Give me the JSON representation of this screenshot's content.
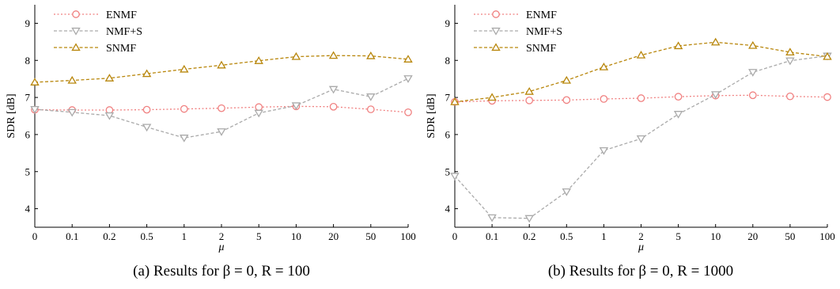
{
  "chart_data": [
    {
      "type": "line",
      "caption": "(a) Results for β = 0, R = 100",
      "xlabel": "μ",
      "ylabel": "SDR [dB]",
      "categories": [
        "0",
        "0.1",
        "0.2",
        "0.5",
        "1",
        "2",
        "5",
        "10",
        "20",
        "50",
        "100"
      ],
      "yticks": [
        4,
        5,
        6,
        7,
        8,
        9
      ],
      "ylim": [
        3.5,
        9.5
      ],
      "grid": false,
      "legend_position": "top-left",
      "series": [
        {
          "name": "ENMF",
          "color": "#f08080",
          "marker": "circle",
          "values": [
            6.67,
            6.66,
            6.66,
            6.67,
            6.69,
            6.71,
            6.74,
            6.76,
            6.75,
            6.68,
            6.6
          ]
        },
        {
          "name": "NMF+S",
          "color": "#aaaaaa",
          "marker": "triangle-down",
          "values": [
            6.68,
            6.6,
            6.51,
            6.2,
            5.91,
            6.08,
            6.58,
            6.78,
            7.22,
            7.02,
            7.51
          ]
        },
        {
          "name": "SNMF",
          "color": "#b8860b",
          "marker": "triangle-up",
          "values": [
            7.41,
            7.46,
            7.52,
            7.64,
            7.76,
            7.87,
            7.99,
            8.1,
            8.13,
            8.12,
            8.03
          ]
        }
      ]
    },
    {
      "type": "line",
      "caption": "(b) Results for β = 0, R = 1000",
      "xlabel": "μ",
      "ylabel": "SDR [dB]",
      "categories": [
        "0",
        "0.1",
        "0.2",
        "0.5",
        "1",
        "2",
        "5",
        "10",
        "20",
        "50",
        "100"
      ],
      "yticks": [
        4,
        5,
        6,
        7,
        8,
        9
      ],
      "ylim": [
        3.5,
        9.5
      ],
      "grid": false,
      "legend_position": "top-left",
      "series": [
        {
          "name": "ENMF",
          "color": "#f08080",
          "marker": "circle",
          "values": [
            6.88,
            6.91,
            6.92,
            6.93,
            6.96,
            6.98,
            7.02,
            7.05,
            7.06,
            7.03,
            7.01
          ]
        },
        {
          "name": "NMF+S",
          "color": "#aaaaaa",
          "marker": "triangle-down",
          "values": [
            4.88,
            3.76,
            3.74,
            4.46,
            5.57,
            5.89,
            6.55,
            7.08,
            7.68,
            7.99,
            8.12
          ]
        },
        {
          "name": "SNMF",
          "color": "#b8860b",
          "marker": "triangle-up",
          "values": [
            6.88,
            7.0,
            7.16,
            7.46,
            7.82,
            8.14,
            8.39,
            8.49,
            8.4,
            8.22,
            8.1
          ]
        }
      ]
    }
  ]
}
